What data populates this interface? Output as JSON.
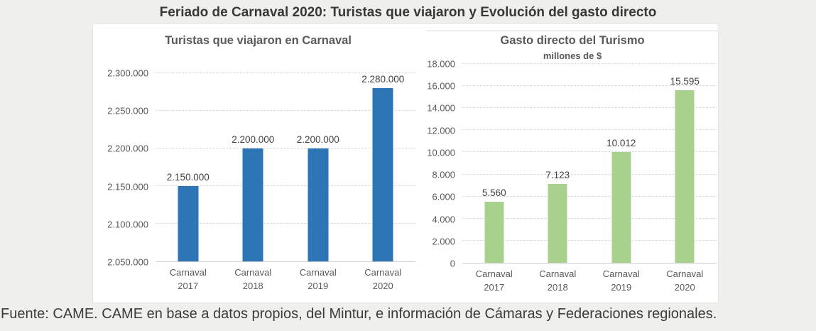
{
  "header": {
    "title": "Feriado de Carnaval 2020: Turistas que viajaron y Evolución del gasto directo"
  },
  "footer": {
    "source": "Fuente: CAME. CAME en base a datos propios, del Mintur, e información de Cámaras y Federaciones regionales."
  },
  "colors": {
    "page_background": "#efefec",
    "panel_background": "#ffffff",
    "tourists_bar_blue": "#2E75B6",
    "spending_bar_green": "#A9D18E",
    "gridline": "#d4d4d4",
    "axis_text": "#595959",
    "data_label_text": "#404040",
    "title_text": "#383838"
  },
  "chart_data": [
    {
      "type": "bar",
      "title": "Turistas que viajaron en Carnaval",
      "subtitle": "",
      "categories": [
        "Carnaval 2017",
        "Carnaval 2018",
        "Carnaval 2019",
        "Carnaval 2020"
      ],
      "values": [
        2150000,
        2200000,
        2200000,
        2280000
      ],
      "data_labels": [
        "2.150.000",
        "2.200.000",
        "2.200.000",
        "2.280.000"
      ],
      "ylim": [
        2050000,
        2300000
      ],
      "yticks": [
        {
          "value": 2050000,
          "label": "2.050.000"
        },
        {
          "value": 2100000,
          "label": "2.100.000"
        },
        {
          "value": 2150000,
          "label": "2.150.000"
        },
        {
          "value": 2200000,
          "label": "2.200.000"
        },
        {
          "value": 2250000,
          "label": "2.250.000"
        },
        {
          "value": 2300000,
          "label": "2.300.000"
        }
      ],
      "bar_color": "#2E75B6",
      "grid": "horizontal dotted",
      "legend": "none"
    },
    {
      "type": "bar",
      "title": "Gasto directo del Turismo",
      "subtitle": "millones de $",
      "categories": [
        "Carnaval 2017",
        "Carnaval 2018",
        "Carnaval 2019",
        "Carnaval 2020"
      ],
      "values": [
        5560,
        7123,
        10012,
        15595
      ],
      "data_labels": [
        "5.560",
        "7.123",
        "10.012",
        "15.595"
      ],
      "ylim": [
        0,
        18000
      ],
      "yticks": [
        {
          "value": 0,
          "label": "0"
        },
        {
          "value": 2000,
          "label": "2.000"
        },
        {
          "value": 4000,
          "label": "4.000"
        },
        {
          "value": 6000,
          "label": "6.000"
        },
        {
          "value": 8000,
          "label": "8.000"
        },
        {
          "value": 10000,
          "label": "10.000"
        },
        {
          "value": 12000,
          "label": "12.000"
        },
        {
          "value": 14000,
          "label": "14.000"
        },
        {
          "value": 16000,
          "label": "16.000"
        },
        {
          "value": 18000,
          "label": "18.000"
        }
      ],
      "bar_color": "#A9D18E",
      "grid": "horizontal dotted",
      "legend": "none"
    }
  ]
}
